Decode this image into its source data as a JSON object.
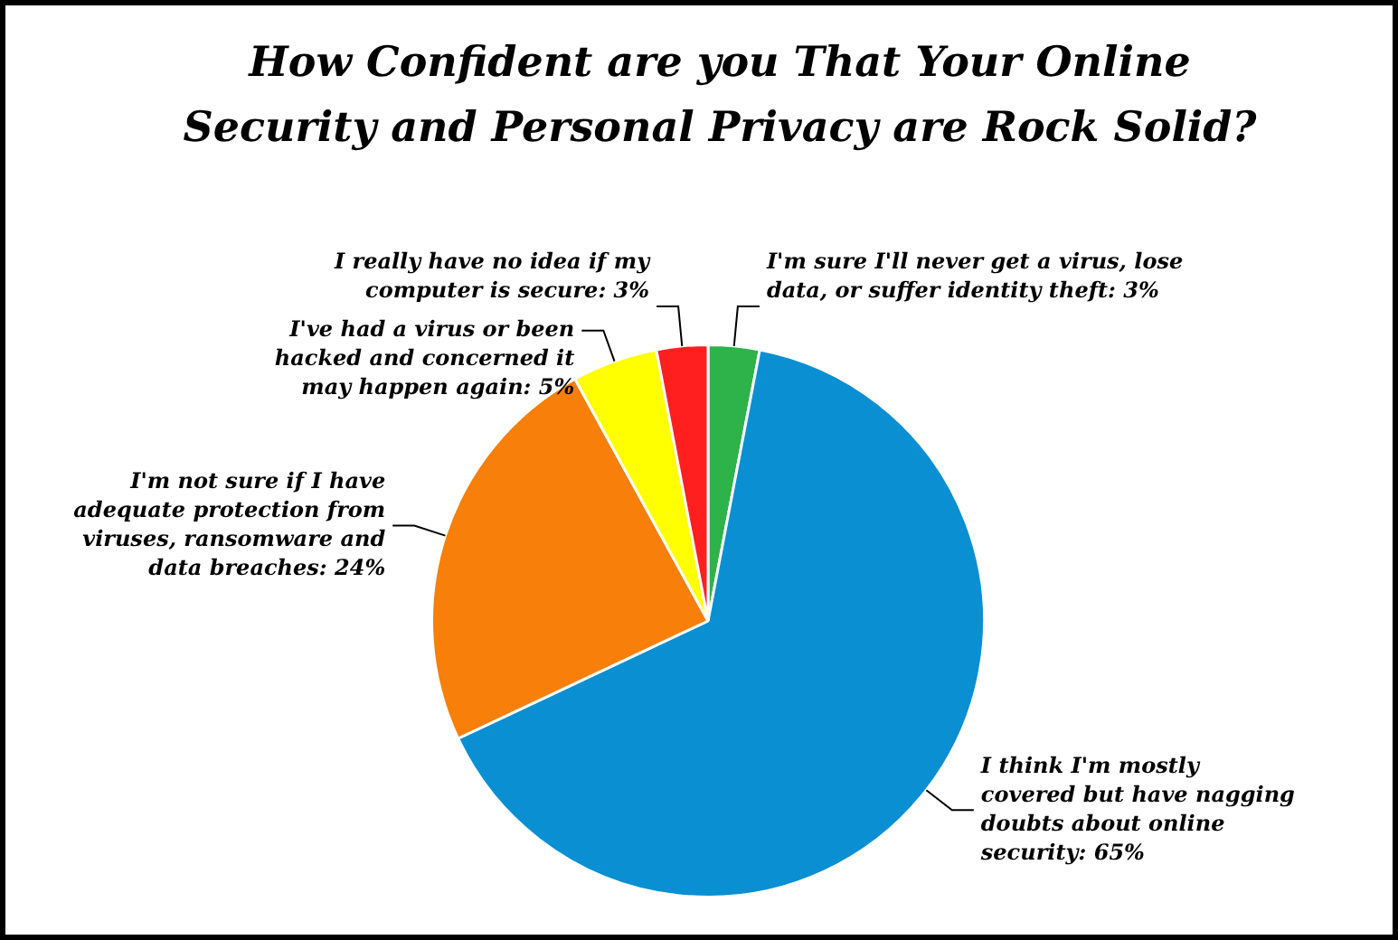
{
  "chart_data": {
    "type": "pie",
    "title": "How Confident are you That Your Online Security and Personal Privacy are Rock Solid?",
    "categories": [
      "I'm sure I'll never get a virus, lose data, or suffer identity theft: 3%",
      "I think I'm mostly covered but have nagging doubts about online security: 65%",
      "I'm not sure if I have adequate protection from viruses, ransomware and data breaches: 24%",
      "I've had a virus or been hacked and concerned it may happen again: 5%",
      "I really have no idea if my computer is secure: 3%"
    ],
    "values": [
      3,
      65,
      24,
      5,
      3
    ],
    "colors": [
      "#2eb24a",
      "#0a8fd2",
      "#f77f0a",
      "#ffff00",
      "#ff1f1f"
    ],
    "legend": false
  }
}
